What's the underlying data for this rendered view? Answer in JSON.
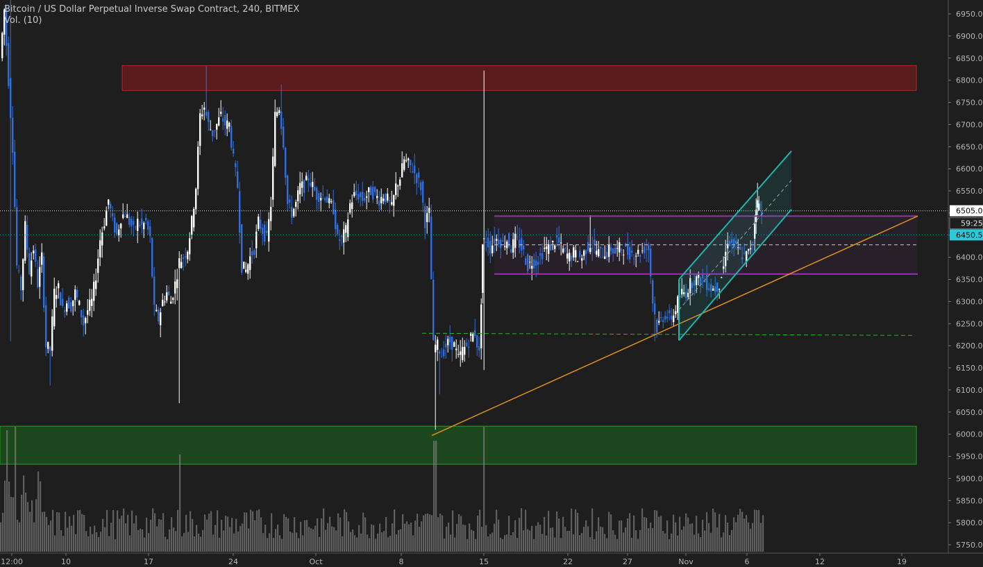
{
  "header": {
    "title": "Bitcoin / US Dollar Perpetual Inverse Swap Contract, 240, BITMEX",
    "indicator": "Vol. (10)"
  },
  "price_scale": {
    "labels": [
      "6950.0",
      "6900.0",
      "6850.0",
      "6800.0",
      "6750.0",
      "6700.0",
      "6650.0",
      "6600.0",
      "6550.0",
      "6500.0",
      "6450.0",
      "6400.0",
      "6350.0",
      "6300.0",
      "6250.0",
      "6200.0",
      "6150.0",
      "6100.0",
      "6050.0",
      "6000.0",
      "5950.0",
      "5900.0",
      "5850.0",
      "5800.0",
      "5750.0"
    ],
    "last_price_label": "6505.0",
    "countdown_label": "59:25",
    "highlight_label": "6450.5"
  },
  "time_scale": {
    "labels": [
      "12:00",
      "10",
      "17",
      "24",
      "Oct",
      "8",
      "15",
      "22",
      "27",
      "Nov",
      "6",
      "12",
      "19"
    ]
  },
  "chart_data": {
    "type": "candlestick",
    "title": "Bitcoin / US Dollar Perpetual Inverse Swap Contract, 240, BITMEX",
    "timeframe": "240",
    "exchange": "BITMEX",
    "indicator": "Vol. (10)",
    "y_range": [
      5735,
      6985
    ],
    "last_price": 6505.0,
    "highlighted_price": 6450.5,
    "colors": {
      "background": "#1e1e1e",
      "up_candle": "#ffffff",
      "down_candle": "#2f6ee0",
      "volume": "#8c8c8c",
      "resistance_zone": "#8b1a1a",
      "support_zone": "#1e6a1e",
      "range_lines": "#9b2fae",
      "channel": "#1fb5b0",
      "trendline": "#e0901c",
      "dashed_support": "#2fb52f",
      "last_price_box": "#ffffff",
      "highlight_box": "#2ec9d9"
    },
    "zones": [
      {
        "name": "resistance",
        "from": 6777,
        "to": 6833
      },
      {
        "name": "support",
        "from": 5932,
        "to": 6018
      }
    ],
    "range": {
      "top": 6493,
      "bottom": 6362,
      "mid": 6428
    },
    "dashed_support_level": 6228,
    "key_points": [
      {
        "x": "Sep 5",
        "high": 6985,
        "low": 6210
      },
      {
        "x": "Sep 21",
        "high": 6832,
        "low": 6520
      },
      {
        "x": "Sep 19",
        "low": 6070
      },
      {
        "x": "Oct 11",
        "low": 6010
      },
      {
        "x": "Oct 15",
        "high": 6822,
        "low": 6145
      },
      {
        "x": "Oct 29",
        "low": 6210
      },
      {
        "x": "Nov 6",
        "high": 6568,
        "close": 6505
      }
    ]
  }
}
